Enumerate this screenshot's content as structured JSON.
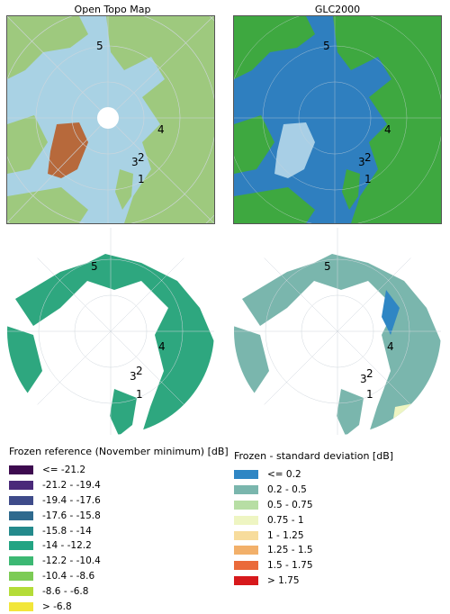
{
  "titles": {
    "topo": "Open Topo Map",
    "glc": "GLC2000"
  },
  "sites": [
    "1",
    "2",
    "3",
    "4",
    "5"
  ],
  "legend_left": {
    "title": "Frozen reference (November minimum) [dB]",
    "items": [
      {
        "label": "<= -21.2",
        "color": "#3d0a4f"
      },
      {
        "label": "-21.2 - -19.4",
        "color": "#4a2a7a"
      },
      {
        "label": "-19.4 - -17.6",
        "color": "#3e4b8a"
      },
      {
        "label": "-17.6 - -15.8",
        "color": "#2f6a8e"
      },
      {
        "label": "-15.8 - -14",
        "color": "#248a8c"
      },
      {
        "label": "-14 - -12.2",
        "color": "#23a483"
      },
      {
        "label": "-12.2 - -10.4",
        "color": "#3cb873"
      },
      {
        "label": "-10.4 - -8.6",
        "color": "#7ccb55"
      },
      {
        "label": "-8.6 - -6.8",
        "color": "#b4dc38"
      },
      {
        "label": "> -6.8",
        "color": "#f2e63a"
      }
    ]
  },
  "legend_right": {
    "title": "Frozen - standard deviation [dB]",
    "items": [
      {
        "label": "<= 0.2",
        "color": "#2f86c4"
      },
      {
        "label": "0.2 - 0.5",
        "color": "#7ab6ad"
      },
      {
        "label": "0.5 - 0.75",
        "color": "#b7dea4"
      },
      {
        "label": "0.75 - 1",
        "color": "#eef5c2"
      },
      {
        "label": "1 - 1.25",
        "color": "#f7dc9c"
      },
      {
        "label": "1.25 - 1.5",
        "color": "#f2b06a"
      },
      {
        "label": "1.5 - 1.75",
        "color": "#ea6a3a"
      },
      {
        "label": "> 1.75",
        "color": "#d7191c"
      }
    ]
  },
  "colors": {
    "ocean_topo": "#a9d2e4",
    "land_topo": "#9ec97e",
    "greenland_topo": "#b7693b",
    "ocean_glc": "#2f7fbf",
    "land_glc": "#3ea840",
    "ice_glc": "#a8cfe6",
    "scatter_left": "#2ea77f",
    "scatter_right": "#7ab6ad",
    "grid": "#cfd6dc"
  }
}
